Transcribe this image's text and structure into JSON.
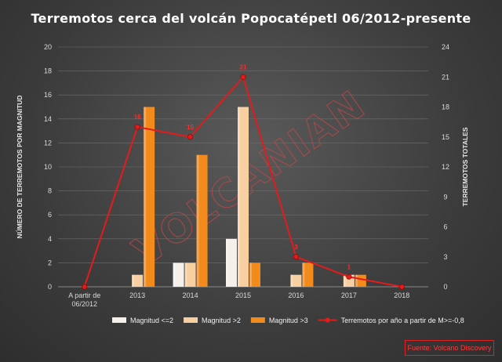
{
  "chart_data": {
    "type": "bar",
    "title": "Terremotos cerca del volcán Popocatépetl 06/2012-presente",
    "categories": [
      "A partir de 06/2012",
      "2013",
      "2014",
      "2015",
      "2016",
      "2017",
      "2018"
    ],
    "category_lines": [
      [
        "A partir de",
        "06/2012"
      ],
      [
        "2013"
      ],
      [
        "2014"
      ],
      [
        "2015"
      ],
      [
        "2016"
      ],
      [
        "2017"
      ],
      [
        "2018"
      ]
    ],
    "ylabel": "NÚMERO DE TERREMOTOS POR MAGNITUD",
    "y2label": "TERREMOTOS TOTALES",
    "ylim": [
      0,
      20
    ],
    "y2lim": [
      0,
      24
    ],
    "yticks": [
      0,
      2,
      4,
      6,
      8,
      10,
      12,
      14,
      16,
      18,
      20
    ],
    "y2ticks": [
      0,
      3,
      6,
      9,
      12,
      15,
      18,
      21,
      24
    ],
    "grid": true,
    "legend_position": "bottom",
    "series": [
      {
        "name": "Magnitud <=2",
        "type": "bar",
        "values": [
          0,
          0,
          2,
          4,
          0,
          0,
          0
        ],
        "color": "#f5f1ea"
      },
      {
        "name": "Magnitud >2",
        "type": "bar",
        "values": [
          0,
          1,
          2,
          15,
          1,
          1,
          0
        ],
        "color": "#f8cfa0"
      },
      {
        "name": "Magnitud >3",
        "type": "bar",
        "values": [
          0,
          15,
          11,
          2,
          2,
          1,
          0
        ],
        "color": "#f28a1c"
      },
      {
        "name": "Terremotos por año a partir de M>=-0,8",
        "type": "line",
        "axis": "y2",
        "values": [
          0,
          16,
          15,
          21,
          3,
          1,
          0
        ],
        "color": "#e31b1b"
      }
    ],
    "data_labels": [
      "",
      "16",
      "15",
      "21",
      "3",
      "1",
      ""
    ]
  },
  "watermark": "VOLCANIAN",
  "source": "Fuente: Volcano Discovery"
}
